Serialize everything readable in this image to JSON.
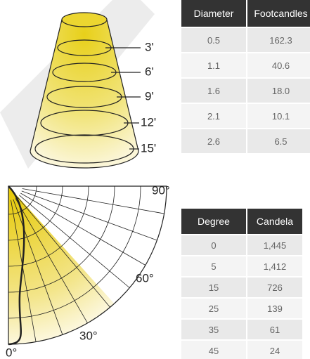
{
  "cone": {
    "labels": [
      "3'",
      "6'",
      "9'",
      "12'",
      "15'"
    ]
  },
  "table1": {
    "headers": [
      "Diameter",
      "Footcandles"
    ],
    "rows": [
      [
        "0.5",
        "162.3"
      ],
      [
        "1.1",
        "40.6"
      ],
      [
        "1.6",
        "18.0"
      ],
      [
        "2.1",
        "10.1"
      ],
      [
        "2.6",
        "6.5"
      ]
    ]
  },
  "polar": {
    "labels": [
      "90°",
      "60°",
      "30°",
      "0°"
    ]
  },
  "table2": {
    "headers": [
      "Degree",
      "Candela"
    ],
    "rows": [
      [
        "0",
        "1,445"
      ],
      [
        "5",
        "1,412"
      ],
      [
        "15",
        "726"
      ],
      [
        "25",
        "139"
      ],
      [
        "35",
        "61"
      ],
      [
        "45",
        "24"
      ]
    ]
  }
}
